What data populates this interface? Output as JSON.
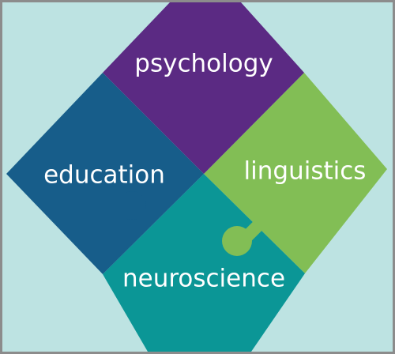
{
  "background_color": "#bde3e2",
  "border_color": "#8c8c8c",
  "pieces": {
    "psychology": {
      "label": "psychology",
      "color": "#5b2a83"
    },
    "education": {
      "label": "education",
      "color": "#175d8a"
    },
    "linguistics": {
      "label": "linguistics",
      "color": "#82be55"
    },
    "neuroscience": {
      "label": "neuroscience",
      "color": "#0b9696"
    }
  }
}
